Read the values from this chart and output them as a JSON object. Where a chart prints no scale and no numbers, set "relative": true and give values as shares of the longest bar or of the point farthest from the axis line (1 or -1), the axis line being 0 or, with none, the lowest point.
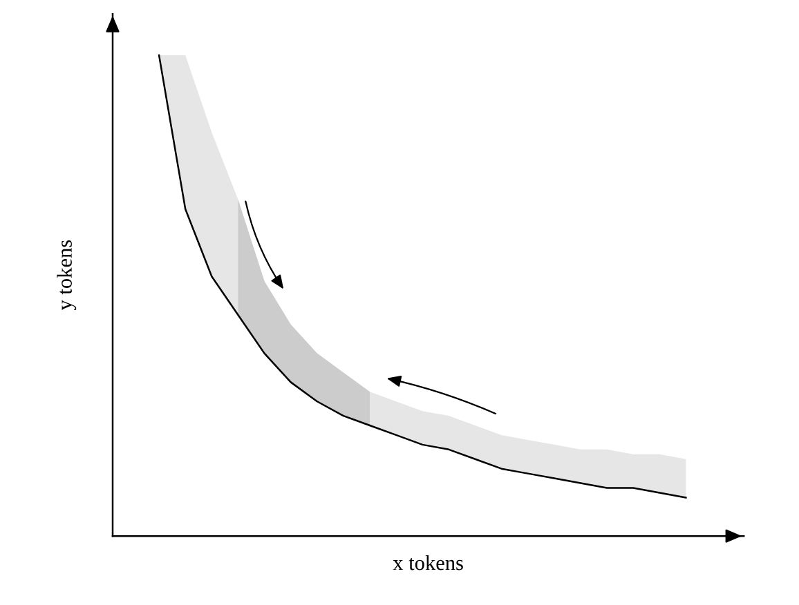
{
  "chart_data": {
    "type": "line",
    "relative": true,
    "xlabel": "x tokens",
    "ylabel": "y tokens",
    "marker": "none",
    "line_style": "solid",
    "categories": [
      null,
      null,
      null,
      null,
      null,
      null,
      null,
      null,
      null,
      null,
      null,
      null,
      null,
      null,
      null,
      null,
      null,
      null,
      null,
      null,
      null
    ],
    "series": [
      {
        "color": "#000000",
        "values": [
          1.0,
          0.68,
          0.54,
          0.46,
          0.38,
          0.32,
          0.28,
          0.25,
          0.23,
          0.21,
          0.19,
          0.18,
          0.16,
          0.14,
          0.13,
          0.12,
          0.11,
          0.1,
          0.1,
          0.09,
          0.08
        ]
      },
      {
        "color": "#e6e6e6",
        "values": [
          null,
          null,
          null,
          null,
          null,
          null,
          null,
          null,
          null,
          null,
          null,
          null,
          null,
          null,
          null,
          null,
          null,
          null,
          null,
          null,
          null
        ],
        "lower": [
          1.0,
          0.68,
          0.54,
          0.46,
          0.38,
          0.32,
          0.28,
          0.25,
          0.23,
          0.21,
          0.19,
          0.18,
          0.16,
          0.14,
          0.13,
          0.12,
          0.11,
          0.1,
          0.1,
          0.09,
          0.08
        ],
        "upper": [
          1.0,
          1.0,
          0.84,
          0.7,
          0.53,
          0.44,
          0.38,
          0.34,
          0.3,
          0.28,
          0.26,
          0.25,
          0.23,
          0.21,
          0.2,
          0.19,
          0.18,
          0.18,
          0.17,
          0.17,
          0.16
        ]
      },
      {
        "color": "#cccccc",
        "values": [
          null,
          null,
          null,
          null,
          null,
          null,
          null,
          null,
          null,
          null,
          null,
          null,
          null,
          null,
          null,
          null,
          null,
          null,
          null,
          null,
          null
        ],
        "lower": [
          null,
          null,
          null,
          0.46,
          0.38,
          0.32,
          0.28,
          0.25,
          0.23,
          null,
          null,
          null,
          null,
          null,
          null,
          null,
          null,
          null,
          null,
          null,
          null
        ],
        "upper": [
          null,
          null,
          null,
          0.7,
          0.53,
          0.44,
          0.38,
          0.34,
          0.3,
          null,
          null,
          null,
          null,
          null,
          null,
          null,
          null,
          null,
          null,
          null,
          null
        ]
      }
    ]
  }
}
